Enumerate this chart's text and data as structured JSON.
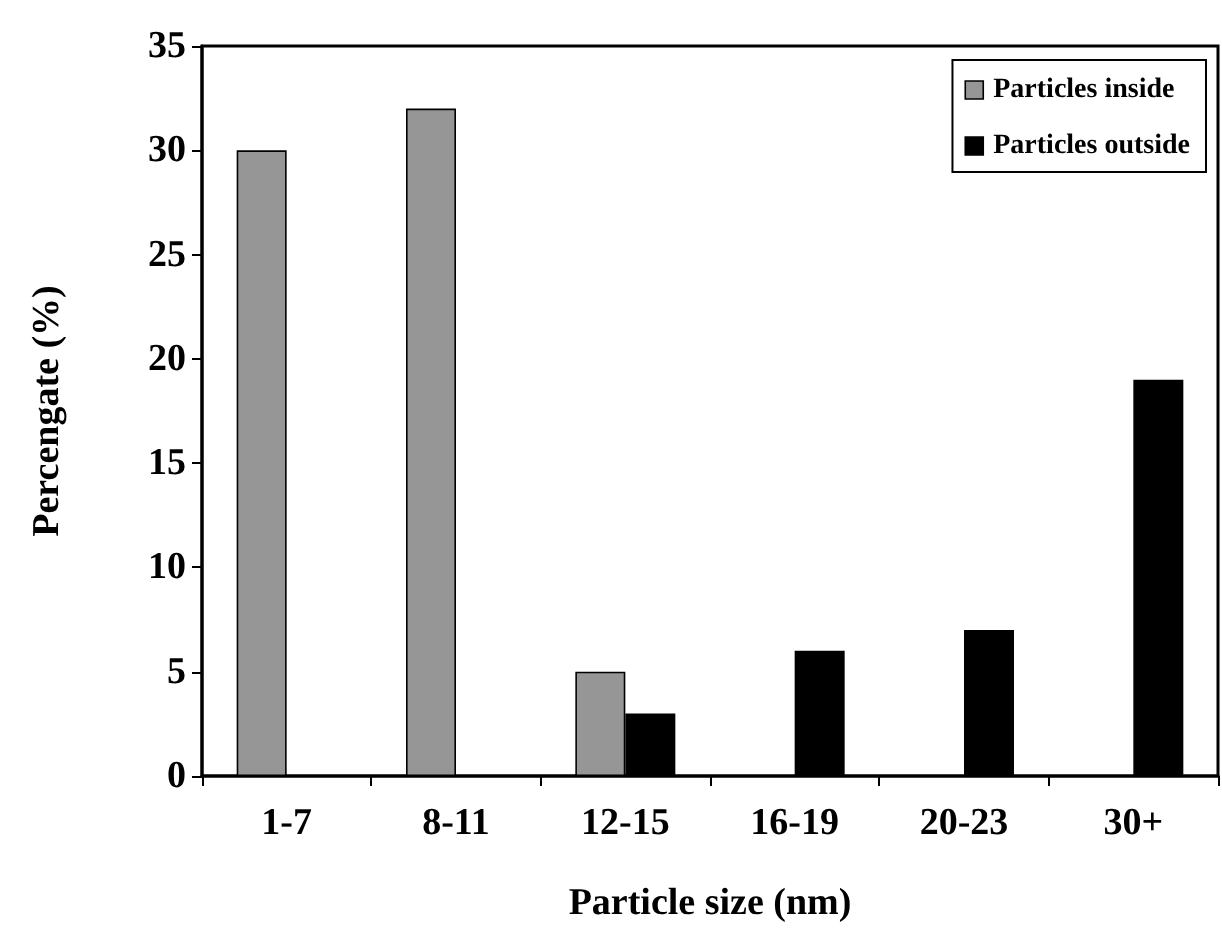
{
  "chart_data": {
    "type": "bar",
    "xlabel": "Particle size (nm)",
    "ylabel": "Percengate (%)",
    "categories": [
      "1-7",
      "8-11",
      "12-15",
      "16-19",
      "20-23",
      "30+"
    ],
    "series": [
      {
        "name": "Particles inside",
        "color": "#969696",
        "values": [
          30,
          32,
          5,
          null,
          null,
          null
        ]
      },
      {
        "name": "Particles outside",
        "color": "#000000",
        "values": [
          null,
          null,
          3,
          6,
          7,
          19
        ]
      }
    ],
    "ylim": [
      0,
      35
    ],
    "yticks": [
      0,
      5,
      10,
      15,
      20,
      25,
      30,
      35
    ],
    "grid": false,
    "legend": "top right"
  }
}
